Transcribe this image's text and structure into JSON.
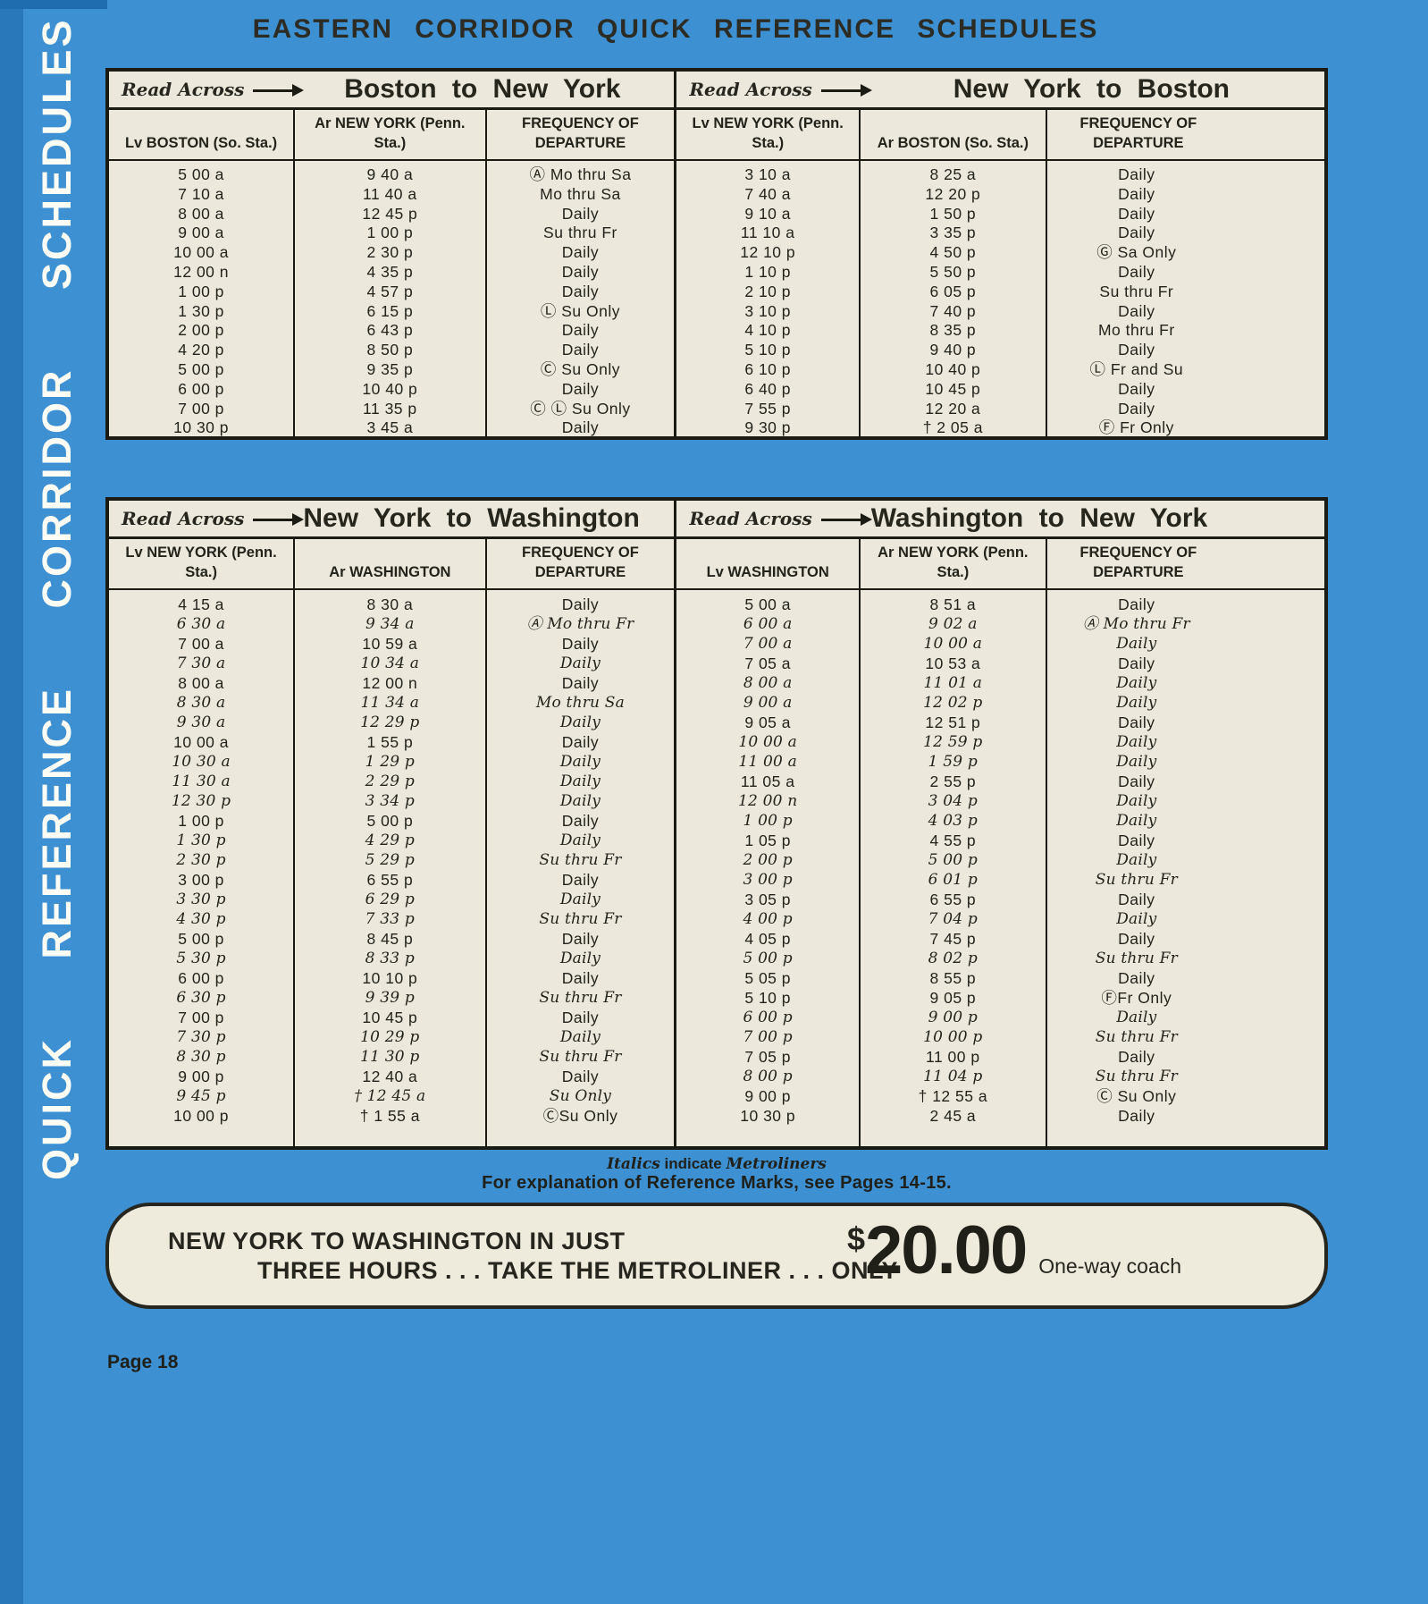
{
  "page": {
    "title": "EASTERN CORRIDOR QUICK REFERENCE SCHEDULES",
    "sidebar_text": "QUICK REFERENCE CORRIDOR SCHEDULES",
    "page_number": "Page 18",
    "colors": {
      "background": "#3d90d2",
      "panel": "#ece9dc",
      "ink": "#26261f"
    }
  },
  "tables": [
    {
      "left": {
        "read_across": "Read Across",
        "title": "Boston to New York",
        "columns": [
          "Lv BOSTON (So. Sta.)",
          "Ar NEW YORK (Penn. Sta.)",
          "FREQUENCY OF\nDEPARTURE"
        ],
        "rows": [
          {
            "l": "5 00 a",
            "a": "9 40 a",
            "f": "Ⓐ Mo thru Sa"
          },
          {
            "l": "7 10 a",
            "a": "11 40 a",
            "f": "Mo thru Sa"
          },
          {
            "l": "8 00 a",
            "a": "12 45 p",
            "f": "Daily"
          },
          {
            "l": "9 00 a",
            "a": "1 00 p",
            "f": "Su thru Fr"
          },
          {
            "l": "10 00 a",
            "a": "2 30 p",
            "f": "Daily"
          },
          {
            "l": "12 00 n",
            "a": "4 35 p",
            "f": "Daily"
          },
          {
            "l": "1 00 p",
            "a": "4 57 p",
            "f": "Daily"
          },
          {
            "l": "1 30 p",
            "a": "6 15 p",
            "f": "Ⓛ Su Only"
          },
          {
            "l": "2 00 p",
            "a": "6 43 p",
            "f": "Daily"
          },
          {
            "l": "4 20 p",
            "a": "8 50 p",
            "f": "Daily"
          },
          {
            "l": "5 00 p",
            "a": "9 35 p",
            "f": "Ⓒ Su Only"
          },
          {
            "l": "6 00 p",
            "a": "10 40 p",
            "f": "Daily"
          },
          {
            "l": "7 00 p",
            "a": "11 35 p",
            "f": "Ⓒ Ⓛ Su Only"
          },
          {
            "l": "10 30 p",
            "a": "3 45 a",
            "f": "Daily"
          }
        ]
      },
      "right": {
        "read_across": "Read Across",
        "title": "New York to Boston",
        "columns": [
          "Lv NEW YORK (Penn. Sta.)",
          "Ar BOSTON (So. Sta.)",
          "FREQUENCY OF\nDEPARTURE"
        ],
        "rows": [
          {
            "l": "3 10 a",
            "a": "8 25 a",
            "f": "Daily"
          },
          {
            "l": "7 40 a",
            "a": "12 20 p",
            "f": "Daily"
          },
          {
            "l": "9 10 a",
            "a": "1 50 p",
            "f": "Daily"
          },
          {
            "l": "11 10 a",
            "a": "3 35 p",
            "f": "Daily"
          },
          {
            "l": "12 10 p",
            "a": "4 50 p",
            "f": "Ⓖ Sa Only"
          },
          {
            "l": "1 10 p",
            "a": "5 50 p",
            "f": "Daily"
          },
          {
            "l": "2 10 p",
            "a": "6 05 p",
            "f": "Su thru Fr"
          },
          {
            "l": "3 10 p",
            "a": "7 40 p",
            "f": "Daily"
          },
          {
            "l": "4 10 p",
            "a": "8 35 p",
            "f": "Mo thru Fr"
          },
          {
            "l": "5 10 p",
            "a": "9 40 p",
            "f": "Daily"
          },
          {
            "l": "6 10 p",
            "a": "10 40 p",
            "f": "Ⓛ Fr and Su"
          },
          {
            "l": "6 40 p",
            "a": "10 45 p",
            "f": "Daily"
          },
          {
            "l": "7 55 p",
            "a": "12 20 a",
            "f": "Daily"
          },
          {
            "l": "9 30 p",
            "a": "† 2 05 a",
            "f": "Ⓕ Fr Only"
          }
        ]
      }
    },
    {
      "left": {
        "read_across": "Read Across",
        "title": "New York to Washington",
        "columns": [
          "Lv NEW YORK (Penn. Sta.)",
          "Ar WASHINGTON",
          "FREQUENCY OF\nDEPARTURE"
        ],
        "rows": [
          {
            "l": "4 15 a",
            "a": "8 30 a",
            "f": "Daily"
          },
          {
            "l": "6 30 a",
            "a": "9 34 a",
            "f": "Ⓐ Mo thru Fr",
            "i": 1
          },
          {
            "l": "7 00 a",
            "a": "10 59 a",
            "f": "Daily"
          },
          {
            "l": "7 30 a",
            "a": "10 34 a",
            "f": "Daily",
            "i": 1
          },
          {
            "l": "8 00 a",
            "a": "12 00 n",
            "f": "Daily"
          },
          {
            "l": "8 30 a",
            "a": "11 34 a",
            "f": "Mo thru Sa",
            "i": 1
          },
          {
            "l": "9 30 a",
            "a": "12 29 p",
            "f": "Daily",
            "i": 1
          },
          {
            "l": "10 00 a",
            "a": "1 55 p",
            "f": "Daily"
          },
          {
            "l": "10 30 a",
            "a": "1 29 p",
            "f": "Daily",
            "i": 1
          },
          {
            "l": "11 30 a",
            "a": "2 29 p",
            "f": "Daily",
            "i": 1
          },
          {
            "l": "12 30 p",
            "a": "3 34 p",
            "f": "Daily",
            "i": 1
          },
          {
            "l": "1 00 p",
            "a": "5 00 p",
            "f": "Daily"
          },
          {
            "l": "1 30 p",
            "a": "4 29 p",
            "f": "Daily",
            "i": 1
          },
          {
            "l": "2 30 p",
            "a": "5 29 p",
            "f": "Su thru Fr",
            "i": 1
          },
          {
            "l": "3 00 p",
            "a": "6 55 p",
            "f": "Daily"
          },
          {
            "l": "3 30 p",
            "a": "6 29 p",
            "f": "Daily",
            "i": 1
          },
          {
            "l": "4 30 p",
            "a": "7 33 p",
            "f": "Su thru Fr",
            "i": 1
          },
          {
            "l": "5 00 p",
            "a": "8 45 p",
            "f": "Daily"
          },
          {
            "l": "5 30 p",
            "a": "8 33 p",
            "f": "Daily",
            "i": 1
          },
          {
            "l": "6 00 p",
            "a": "10 10 p",
            "f": "Daily"
          },
          {
            "l": "6 30 p",
            "a": "9 39 p",
            "f": "Su thru Fr",
            "i": 1
          },
          {
            "l": "7 00 p",
            "a": "10 45 p",
            "f": "Daily"
          },
          {
            "l": "7 30 p",
            "a": "10 29 p",
            "f": "Daily",
            "i": 1
          },
          {
            "l": "8 30 p",
            "a": "11 30 p",
            "f": "Su thru Fr",
            "i": 1
          },
          {
            "l": "9 00 p",
            "a": "12 40 a",
            "f": "Daily"
          },
          {
            "l": "9 45 p",
            "a": "† 12 45 a",
            "f": "Su Only",
            "i": 1
          },
          {
            "l": "10 00 p",
            "a": "† 1 55 a",
            "f": "ⒸSu Only"
          }
        ]
      },
      "right": {
        "read_across": "Read Across",
        "title": "Washington to New York",
        "columns": [
          "Lv WASHINGTON",
          "Ar NEW YORK (Penn. Sta.)",
          "FREQUENCY OF\nDEPARTURE"
        ],
        "rows": [
          {
            "l": "5 00 a",
            "a": "8 51 a",
            "f": "Daily"
          },
          {
            "l": "6 00 a",
            "a": "9 02 a",
            "f": "Ⓐ Mo thru Fr",
            "i": 1
          },
          {
            "l": "7 00 a",
            "a": "10 00 a",
            "f": "Daily",
            "i": 1
          },
          {
            "l": "7 05 a",
            "a": "10 53 a",
            "f": "Daily"
          },
          {
            "l": "8 00 a",
            "a": "11 01 a",
            "f": "Daily",
            "i": 1
          },
          {
            "l": "9 00 a",
            "a": "12 02 p",
            "f": "Daily",
            "i": 1
          },
          {
            "l": "9 05 a",
            "a": "12 51 p",
            "f": "Daily"
          },
          {
            "l": "10 00 a",
            "a": "12 59 p",
            "f": "Daily",
            "i": 1
          },
          {
            "l": "11 00 a",
            "a": "1 59 p",
            "f": "Daily",
            "i": 1
          },
          {
            "l": "11 05 a",
            "a": "2 55 p",
            "f": "Daily"
          },
          {
            "l": "12 00 n",
            "a": "3 04 p",
            "f": "Daily",
            "i": 1
          },
          {
            "l": "1 00 p",
            "a": "4 03 p",
            "f": "Daily",
            "i": 1
          },
          {
            "l": "1 05 p",
            "a": "4 55 p",
            "f": "Daily"
          },
          {
            "l": "2 00 p",
            "a": "5 00 p",
            "f": "Daily",
            "i": 1
          },
          {
            "l": "3 00 p",
            "a": "6 01 p",
            "f": "Su thru Fr",
            "i": 1
          },
          {
            "l": "3 05 p",
            "a": "6 55 p",
            "f": "Daily"
          },
          {
            "l": "4 00 p",
            "a": "7 04 p",
            "f": "Daily",
            "i": 1
          },
          {
            "l": "4 05 p",
            "a": "7 45 p",
            "f": "Daily"
          },
          {
            "l": "5 00 p",
            "a": "8 02 p",
            "f": "Su thru Fr",
            "i": 1
          },
          {
            "l": "5 05 p",
            "a": "8 55 p",
            "f": "Daily"
          },
          {
            "l": "5 10 p",
            "a": "9 05 p",
            "f": "ⒻFr Only"
          },
          {
            "l": "6 00 p",
            "a": "9 00 p",
            "f": "Daily",
            "i": 1
          },
          {
            "l": "7 00 p",
            "a": "10 00 p",
            "f": "Su thru Fr",
            "i": 1
          },
          {
            "l": "7 05 p",
            "a": "11 00 p",
            "f": "Daily"
          },
          {
            "l": "8 00 p",
            "a": "11 04 p",
            "f": "Su thru Fr",
            "i": 1
          },
          {
            "l": "9 00 p",
            "a": "† 12 55 a",
            "f": "Ⓒ Su Only"
          },
          {
            "l": "10 30 p",
            "a": "2 45 a",
            "f": "Daily"
          }
        ]
      }
    }
  ],
  "footnotes": {
    "line1_ital1": "Italics",
    "line1_mid": " indicate ",
    "line1_ital2": "Metroliners",
    "line2": "For explanation of Reference Marks, see Pages 14-15."
  },
  "promo": {
    "line1": "NEW YORK TO WASHINGTON IN JUST",
    "line2": "THREE HOURS . . . TAKE THE METROLINER . . . ONLY",
    "currency": "$",
    "price": "20.00",
    "price_note": "One-way coach"
  }
}
